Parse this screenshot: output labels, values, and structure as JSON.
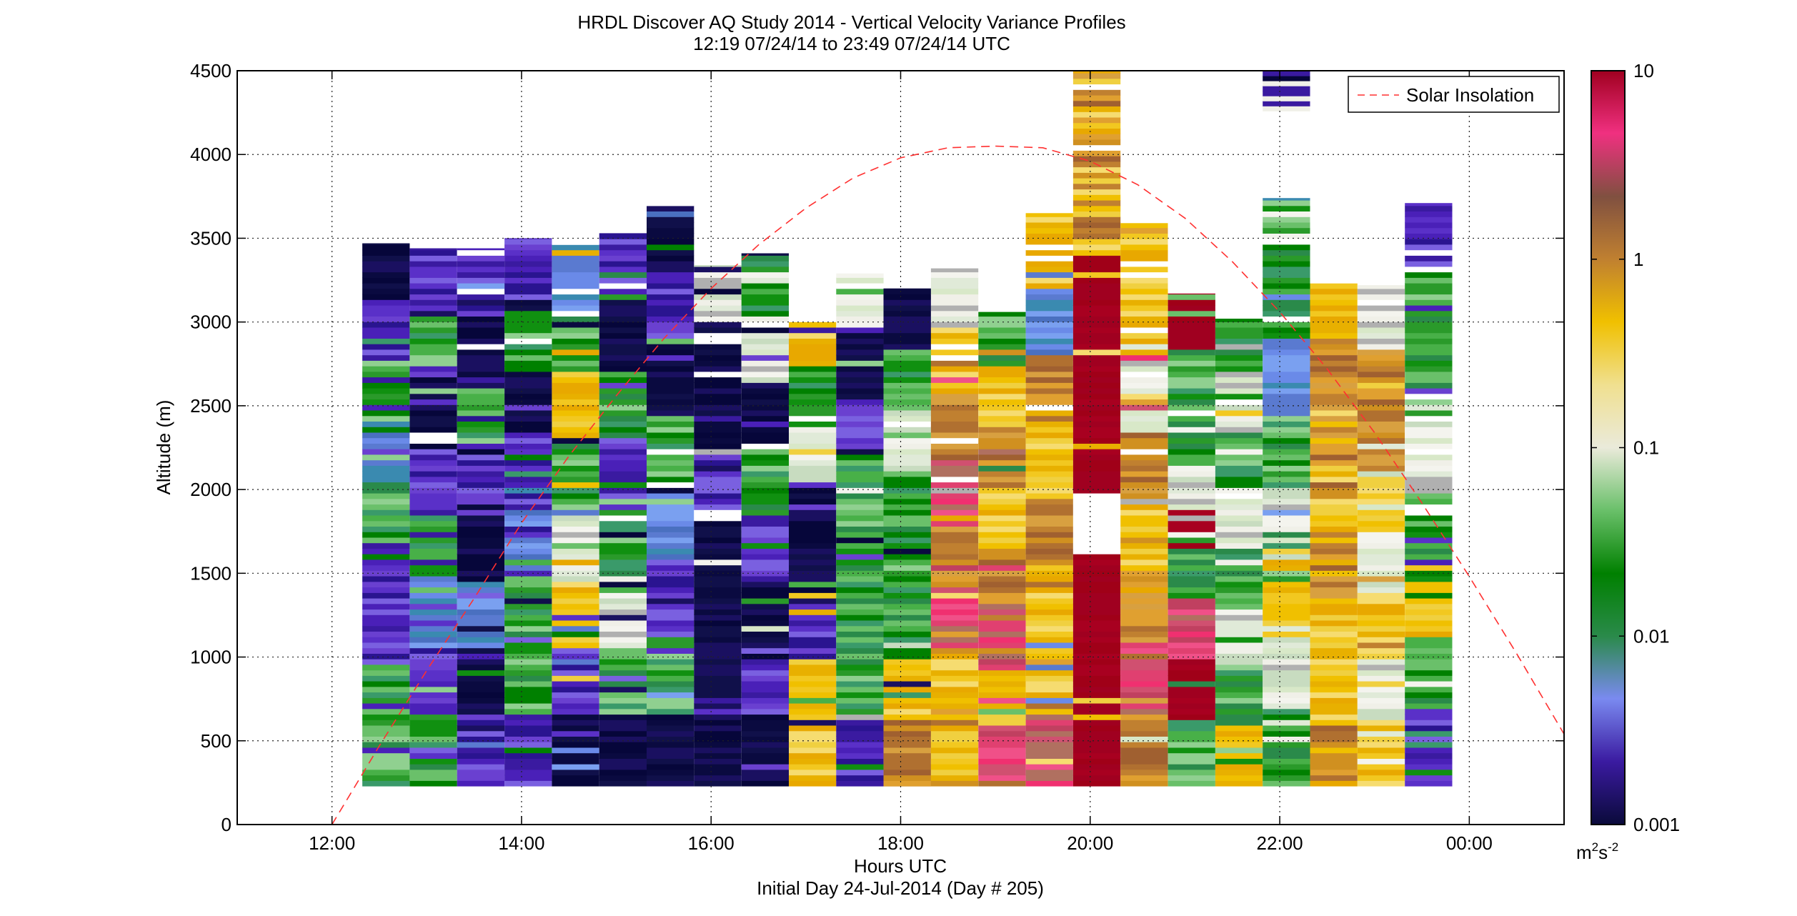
{
  "chart_data": {
    "type": "heatmap",
    "title": "HRDL Discover AQ Study 2014 - Vertical Velocity Variance Profiles",
    "subtitle": "12:19 07/24/14 to 23:49 07/24/14  UTC",
    "xlabel": "Hours UTC",
    "xlabel_sub": "Initial Day 24-Jul-2014 (Day # 205)",
    "ylabel": "Altitude (m)",
    "xlim": [
      11,
      25
    ],
    "ylim": [
      0,
      4500
    ],
    "x_ticks": [
      {
        "value": 12,
        "label": "12:00"
      },
      {
        "value": 14,
        "label": "14:00"
      },
      {
        "value": 16,
        "label": "16:00"
      },
      {
        "value": 18,
        "label": "18:00"
      },
      {
        "value": 20,
        "label": "20:00"
      },
      {
        "value": 22,
        "label": "22:00"
      },
      {
        "value": 24,
        "label": "00:00"
      }
    ],
    "y_ticks": [
      {
        "value": 0,
        "label": "0"
      },
      {
        "value": 500,
        "label": "500"
      },
      {
        "value": 1000,
        "label": "1000"
      },
      {
        "value": 1500,
        "label": "1500"
      },
      {
        "value": 2000,
        "label": "2000"
      },
      {
        "value": 2500,
        "label": "2500"
      },
      {
        "value": 3000,
        "label": "3000"
      },
      {
        "value": 3500,
        "label": "3500"
      },
      {
        "value": 4000,
        "label": "4000"
      },
      {
        "value": 4500,
        "label": "4500"
      }
    ],
    "grid": true,
    "colorbar": {
      "scale": "log",
      "range": [
        0.001,
        10
      ],
      "ticks": [
        {
          "value": 10,
          "label": "10"
        },
        {
          "value": 1,
          "label": "1"
        },
        {
          "value": 0.1,
          "label": "0.1"
        },
        {
          "value": 0.01,
          "label": "0.01"
        },
        {
          "value": 0.001,
          "label": "0.001"
        }
      ],
      "unit_base": "m",
      "unit_sup1": "2",
      "unit_mid": "s",
      "unit_sup2": "-2",
      "colors": [
        "#0a0a3a",
        "#3a1aa0",
        "#7a8af0",
        "#2a8a4a",
        "#008000",
        "#6ac06a",
        "#eaeada",
        "#f0e090",
        "#f0c000",
        "#c08030",
        "#805040",
        "#f03080",
        "#a00020"
      ]
    },
    "legend": {
      "position": "top-right",
      "entries": [
        "Solar Insolation"
      ],
      "line_color": "#ff3030"
    },
    "solar_insolation": {
      "x": [
        12.0,
        12.5,
        13.0,
        13.5,
        14.0,
        14.5,
        15.0,
        15.5,
        16.0,
        16.5,
        17.0,
        17.5,
        18.0,
        18.5,
        19.0,
        19.5,
        20.0,
        20.5,
        21.0,
        21.5,
        22.0,
        22.5,
        23.0,
        23.5,
        24.0,
        24.5,
        25.0
      ],
      "y": [
        0,
        470,
        920,
        1350,
        1800,
        2200,
        2560,
        2900,
        3200,
        3460,
        3680,
        3860,
        3980,
        4040,
        4050,
        4040,
        3960,
        3820,
        3620,
        3360,
        3060,
        2720,
        2340,
        1920,
        1480,
        1020,
        540
      ]
    },
    "profiles_x_range": [
      12.32,
      23.82
    ],
    "profiles_altitude_range": [
      230,
      4500
    ],
    "profiles": [
      {
        "start": 12.32,
        "end": 12.82,
        "top": 3470,
        "seed": 3,
        "pattern": [
          "g",
          "g",
          "v",
          "v",
          "g",
          "b",
          "g",
          "v",
          "n"
        ]
      },
      {
        "start": 12.82,
        "end": 13.32,
        "top": 3440,
        "seed": 7,
        "pattern": [
          "g",
          "v",
          "b",
          "g",
          "v",
          "n",
          "g",
          "v"
        ]
      },
      {
        "start": 13.32,
        "end": 13.82,
        "top": 3440,
        "seed": 11,
        "pattern": [
          "v",
          "n",
          "b",
          "n",
          "v",
          "g",
          "n",
          "v"
        ]
      },
      {
        "start": 13.82,
        "end": 14.32,
        "top": 3500,
        "seed": 13,
        "pattern": [
          "v",
          "g",
          "g",
          "b",
          "v",
          "n",
          "g",
          "v"
        ]
      },
      {
        "start": 14.32,
        "end": 14.82,
        "top": 3460,
        "seed": 17,
        "pattern": [
          "n",
          "v",
          "y",
          "w",
          "g",
          "y",
          "g",
          "b"
        ]
      },
      {
        "start": 14.82,
        "end": 15.32,
        "top": 3530,
        "seed": 19,
        "pattern": [
          "n",
          "g",
          "w",
          "g",
          "v",
          "g",
          "n",
          "v"
        ]
      },
      {
        "start": 15.32,
        "end": 15.82,
        "top": 3700,
        "seed": 23,
        "pattern": [
          "n",
          "g",
          "v",
          "b",
          "g",
          "n",
          "v",
          "n"
        ]
      },
      {
        "start": 15.82,
        "end": 16.32,
        "top": 3340,
        "seed": 29,
        "pattern": [
          "n",
          "n",
          "n",
          "n",
          "v",
          "n",
          "n",
          "w"
        ]
      },
      {
        "start": 16.32,
        "end": 16.82,
        "top": 3410,
        "seed": 31,
        "pattern": [
          "n",
          "v",
          "n",
          "v",
          "g",
          "n",
          "w",
          "g"
        ]
      },
      {
        "start": 16.82,
        "end": 17.32,
        "top": 3040,
        "seed": 37,
        "pattern": [
          "y",
          "y",
          "v",
          "n",
          "n",
          "w",
          "g",
          "y"
        ]
      },
      {
        "start": 17.32,
        "end": 17.82,
        "top": 3290,
        "seed": 41,
        "pattern": [
          "v",
          "g",
          "g",
          "g",
          "g",
          "v",
          "n",
          "w"
        ]
      },
      {
        "start": 17.82,
        "end": 18.32,
        "top": 3200,
        "seed": 43,
        "pattern": [
          "o",
          "y",
          "g",
          "g",
          "g",
          "w",
          "g",
          "n"
        ]
      },
      {
        "start": 17.82,
        "end": 18.32,
        "top": 3200,
        "seed": 47,
        "pattern": [
          "o",
          "y",
          "g",
          "g",
          "g",
          "w",
          "g",
          "n"
        ]
      },
      {
        "start": 18.32,
        "end": 18.82,
        "top": 3320,
        "seed": 53,
        "pattern": [
          "y",
          "y",
          "p",
          "o",
          "p",
          "o",
          "y",
          "w"
        ]
      },
      {
        "start": 18.82,
        "end": 19.32,
        "top": 3060,
        "seed": 59,
        "pattern": [
          "p",
          "y",
          "p",
          "o",
          "y",
          "o",
          "y",
          "g"
        ]
      },
      {
        "start": 19.32,
        "end": 19.82,
        "top": 3650,
        "seed": 61,
        "pattern": [
          "p",
          "y",
          "y",
          "o",
          "y",
          "o",
          "b",
          "y"
        ]
      },
      {
        "start": 19.82,
        "end": 20.32,
        "top": 4500,
        "seed": 67,
        "pattern": [
          "r",
          "r",
          "r",
          "r",
          "r",
          "r",
          "y",
          "y"
        ]
      },
      {
        "start": 20.32,
        "end": 20.82,
        "top": 3590,
        "seed": 71,
        "pattern": [
          "o",
          "p",
          "o",
          "y",
          "o",
          "w",
          "y",
          "y"
        ]
      },
      {
        "start": 20.82,
        "end": 21.32,
        "top": 3170,
        "seed": 73,
        "pattern": [
          "g",
          "r",
          "p",
          "g",
          "w",
          "g",
          "g",
          "r"
        ]
      },
      {
        "start": 21.32,
        "end": 21.82,
        "top": 3020,
        "seed": 79,
        "pattern": [
          "y",
          "g",
          "w",
          "g",
          "w",
          "g",
          "w",
          "g"
        ]
      },
      {
        "start": 21.82,
        "end": 22.32,
        "top": 3740,
        "seed": 83,
        "pattern": [
          "g",
          "w",
          "y",
          "w",
          "g",
          "b",
          "g",
          "g"
        ]
      },
      {
        "start": 22.32,
        "end": 22.82,
        "top": 3230,
        "seed": 89,
        "pattern": [
          "o",
          "y",
          "y",
          "o",
          "y",
          "o",
          "o",
          "y"
        ]
      },
      {
        "start": 22.82,
        "end": 23.32,
        "top": 3220,
        "seed": 97,
        "pattern": [
          "y",
          "w",
          "y",
          "w",
          "y",
          "o",
          "o",
          "w"
        ]
      },
      {
        "start": 23.32,
        "end": 23.82,
        "top": 3710,
        "seed": 101,
        "pattern": [
          "v",
          "g",
          "y",
          "g",
          "w",
          "g",
          "g",
          "v"
        ]
      }
    ],
    "gap": {
      "x_start": 19.82,
      "x_end": 20.32,
      "y_low": 1610,
      "y_high": 1980
    },
    "high_scatter": {
      "start": 21.82,
      "end": 22.32,
      "y_low": 4260,
      "y_high": 4500
    }
  }
}
